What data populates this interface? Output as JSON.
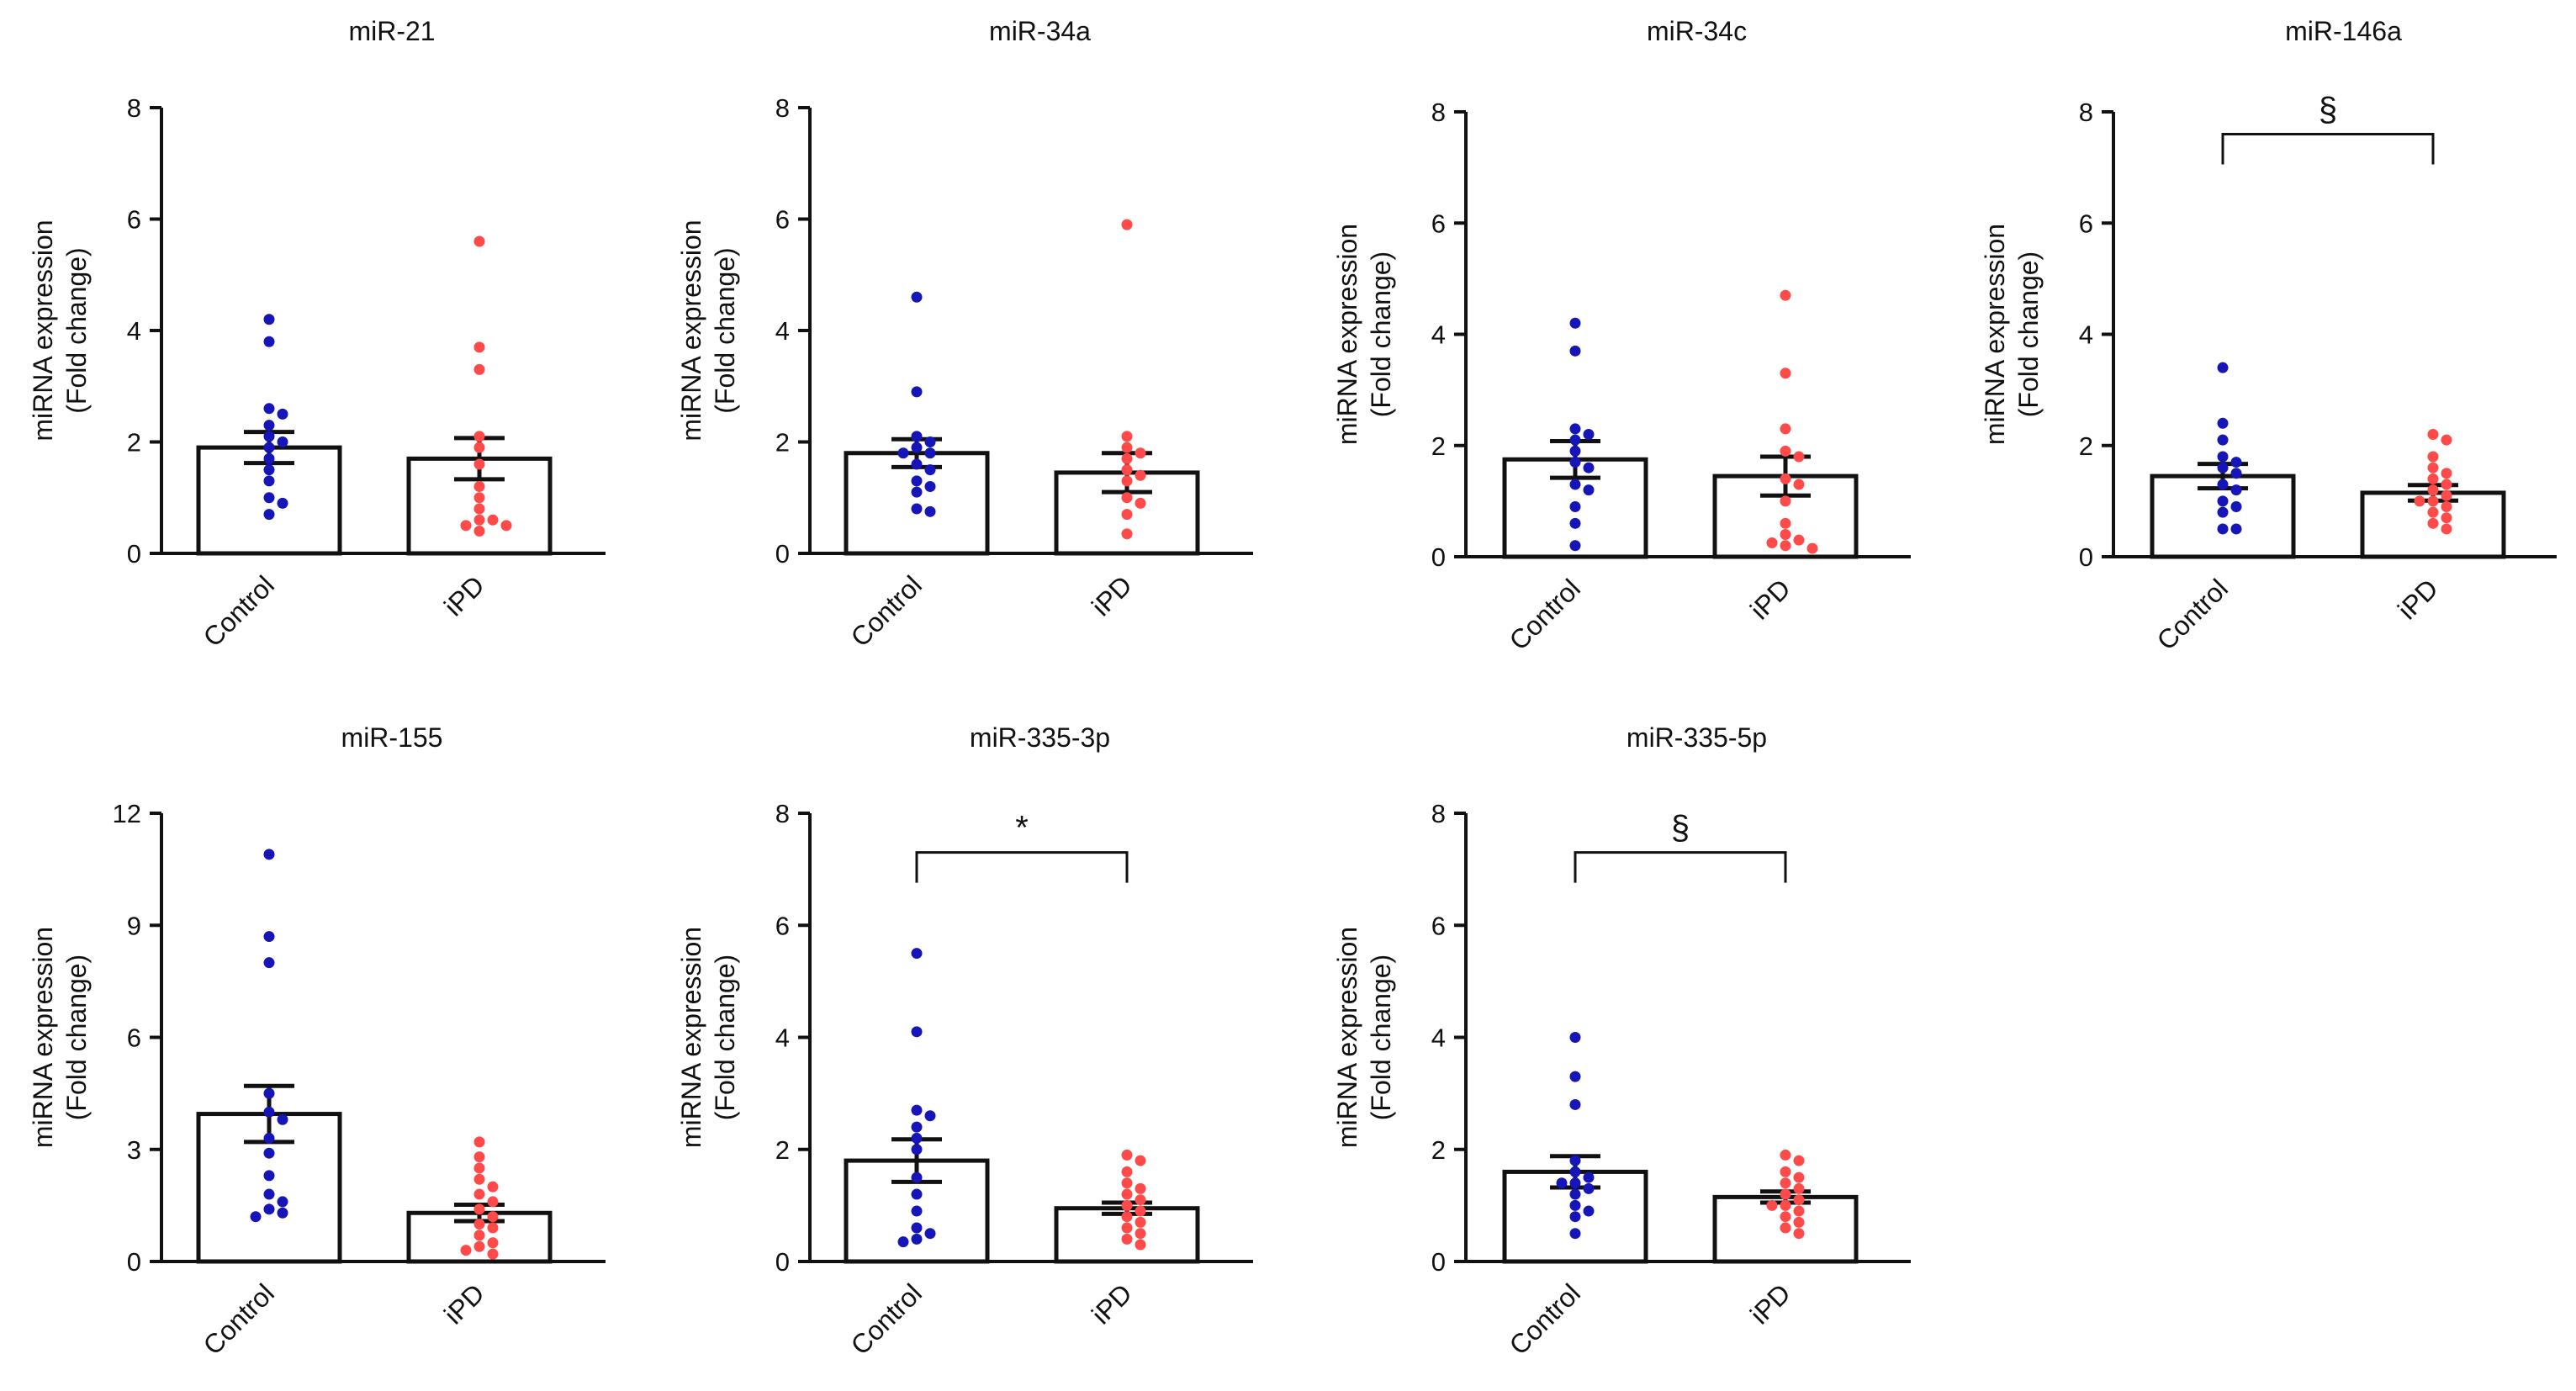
{
  "figure": {
    "ylabel_line1": "miRNA expression",
    "ylabel_line2": "(Fold change)",
    "group_colors": {
      "Control": "#1515b8",
      "iPD": "#ff4a4a"
    }
  },
  "chart_data": [
    {
      "type": "bar",
      "title": "miR-21",
      "categories": [
        "Control",
        "iPD"
      ],
      "ylim": [
        0,
        8
      ],
      "yticks": [
        0,
        2,
        4,
        6,
        8
      ],
      "ylabel": "miRNA expression (Fold change)",
      "series": [
        {
          "name": "Control",
          "mean": 1.9,
          "sem": 0.28,
          "points": [
            4.2,
            3.8,
            2.6,
            2.5,
            2.3,
            2.1,
            2.0,
            1.9,
            1.7,
            1.5,
            1.3,
            1.0,
            0.9,
            0.7
          ]
        },
        {
          "name": "iPD",
          "mean": 1.7,
          "sem": 0.37,
          "points": [
            5.6,
            3.7,
            3.3,
            2.1,
            1.9,
            1.6,
            1.2,
            1.0,
            0.8,
            0.6,
            0.6,
            0.5,
            0.5,
            0.4
          ]
        }
      ],
      "significance": null
    },
    {
      "type": "bar",
      "title": "miR-34a",
      "categories": [
        "Control",
        "iPD"
      ],
      "ylim": [
        0,
        8
      ],
      "yticks": [
        0,
        2,
        4,
        6,
        8
      ],
      "ylabel": "miRNA expression (Fold change)",
      "series": [
        {
          "name": "Control",
          "mean": 1.8,
          "sem": 0.25,
          "points": [
            4.6,
            2.9,
            2.1,
            2.0,
            1.9,
            1.8,
            1.8,
            1.6,
            1.5,
            1.3,
            1.2,
            1.1,
            0.8,
            0.75
          ]
        },
        {
          "name": "iPD",
          "mean": 1.45,
          "sem": 0.35,
          "points": [
            5.9,
            2.1,
            1.9,
            1.8,
            1.7,
            1.5,
            1.4,
            1.3,
            1.0,
            0.9,
            0.7,
            0.35
          ]
        }
      ],
      "significance": null
    },
    {
      "type": "bar",
      "title": "miR-34c",
      "categories": [
        "Control",
        "iPD"
      ],
      "ylim": [
        0,
        8
      ],
      "yticks": [
        0,
        2,
        4,
        6,
        8
      ],
      "ylabel": "miRNA expression (Fold change)",
      "series": [
        {
          "name": "Control",
          "mean": 1.75,
          "sem": 0.33,
          "points": [
            4.2,
            3.7,
            2.3,
            2.2,
            2.1,
            1.9,
            1.7,
            1.6,
            1.3,
            1.2,
            0.9,
            0.6,
            0.2
          ]
        },
        {
          "name": "iPD",
          "mean": 1.45,
          "sem": 0.35,
          "points": [
            4.7,
            3.3,
            2.3,
            1.9,
            1.8,
            1.4,
            1.3,
            1.0,
            0.6,
            0.4,
            0.3,
            0.25,
            0.2,
            0.15
          ]
        }
      ],
      "significance": null
    },
    {
      "type": "bar",
      "title": "miR-146a",
      "categories": [
        "Control",
        "iPD"
      ],
      "ylim": [
        0,
        8
      ],
      "yticks": [
        0,
        2,
        4,
        6,
        8
      ],
      "ylabel": "miRNA expression (Fold change)",
      "series": [
        {
          "name": "Control",
          "mean": 1.45,
          "sem": 0.22,
          "points": [
            3.4,
            2.4,
            2.1,
            1.8,
            1.7,
            1.6,
            1.5,
            1.3,
            1.2,
            1.0,
            0.9,
            0.8,
            0.5,
            0.5
          ]
        },
        {
          "name": "iPD",
          "mean": 1.15,
          "sem": 0.14,
          "points": [
            2.2,
            2.1,
            1.8,
            1.6,
            1.5,
            1.4,
            1.3,
            1.2,
            1.1,
            1.0,
            1.0,
            0.9,
            0.8,
            0.7,
            0.6,
            0.5
          ]
        }
      ],
      "significance": {
        "label": "§",
        "y": 7.6
      }
    },
    {
      "type": "bar",
      "title": "miR-155",
      "categories": [
        "Control",
        "iPD"
      ],
      "ylim": [
        0,
        12
      ],
      "yticks": [
        0,
        3,
        6,
        9,
        12
      ],
      "ylabel": "miRNA expression (Fold change)",
      "series": [
        {
          "name": "Control",
          "mean": 3.95,
          "sem": 0.75,
          "points": [
            10.9,
            8.7,
            8.0,
            4.5,
            4.0,
            3.8,
            3.3,
            2.9,
            2.3,
            1.8,
            1.6,
            1.4,
            1.3,
            1.2
          ]
        },
        {
          "name": "iPD",
          "mean": 1.3,
          "sem": 0.22,
          "points": [
            3.2,
            2.8,
            2.5,
            2.2,
            2.0,
            1.8,
            1.6,
            1.4,
            1.2,
            1.0,
            0.9,
            0.7,
            0.5,
            0.4,
            0.3,
            0.2
          ]
        }
      ],
      "significance": null
    },
    {
      "type": "bar",
      "title": "miR-335-3p",
      "categories": [
        "Control",
        "iPD"
      ],
      "ylim": [
        0,
        8
      ],
      "yticks": [
        0,
        2,
        4,
        6,
        8
      ],
      "ylabel": "miRNA expression (Fold change)",
      "series": [
        {
          "name": "Control",
          "mean": 1.8,
          "sem": 0.38,
          "points": [
            5.5,
            4.1,
            2.7,
            2.6,
            2.4,
            2.2,
            2.0,
            1.5,
            1.2,
            0.9,
            0.6,
            0.5,
            0.4,
            0.35
          ]
        },
        {
          "name": "iPD",
          "mean": 0.95,
          "sem": 0.1,
          "points": [
            1.9,
            1.8,
            1.6,
            1.4,
            1.3,
            1.2,
            1.1,
            1.0,
            0.9,
            0.8,
            0.7,
            0.6,
            0.5,
            0.4,
            0.3
          ]
        }
      ],
      "significance": {
        "label": "*",
        "y": 7.3
      }
    },
    {
      "type": "bar",
      "title": "miR-335-5p",
      "categories": [
        "Control",
        "iPD"
      ],
      "ylim": [
        0,
        8
      ],
      "yticks": [
        0,
        2,
        4,
        6,
        8
      ],
      "ylabel": "miRNA expression (Fold change)",
      "series": [
        {
          "name": "Control",
          "mean": 1.6,
          "sem": 0.28,
          "points": [
            4.0,
            3.3,
            2.8,
            1.8,
            1.6,
            1.5,
            1.4,
            1.4,
            1.3,
            1.2,
            1.0,
            0.9,
            0.8,
            0.5
          ]
        },
        {
          "name": "iPD",
          "mean": 1.15,
          "sem": 0.1,
          "points": [
            1.9,
            1.8,
            1.6,
            1.5,
            1.4,
            1.3,
            1.2,
            1.1,
            1.0,
            1.0,
            0.9,
            0.8,
            0.7,
            0.6,
            0.5
          ]
        }
      ],
      "significance": {
        "label": "§",
        "y": 7.3
      }
    }
  ]
}
